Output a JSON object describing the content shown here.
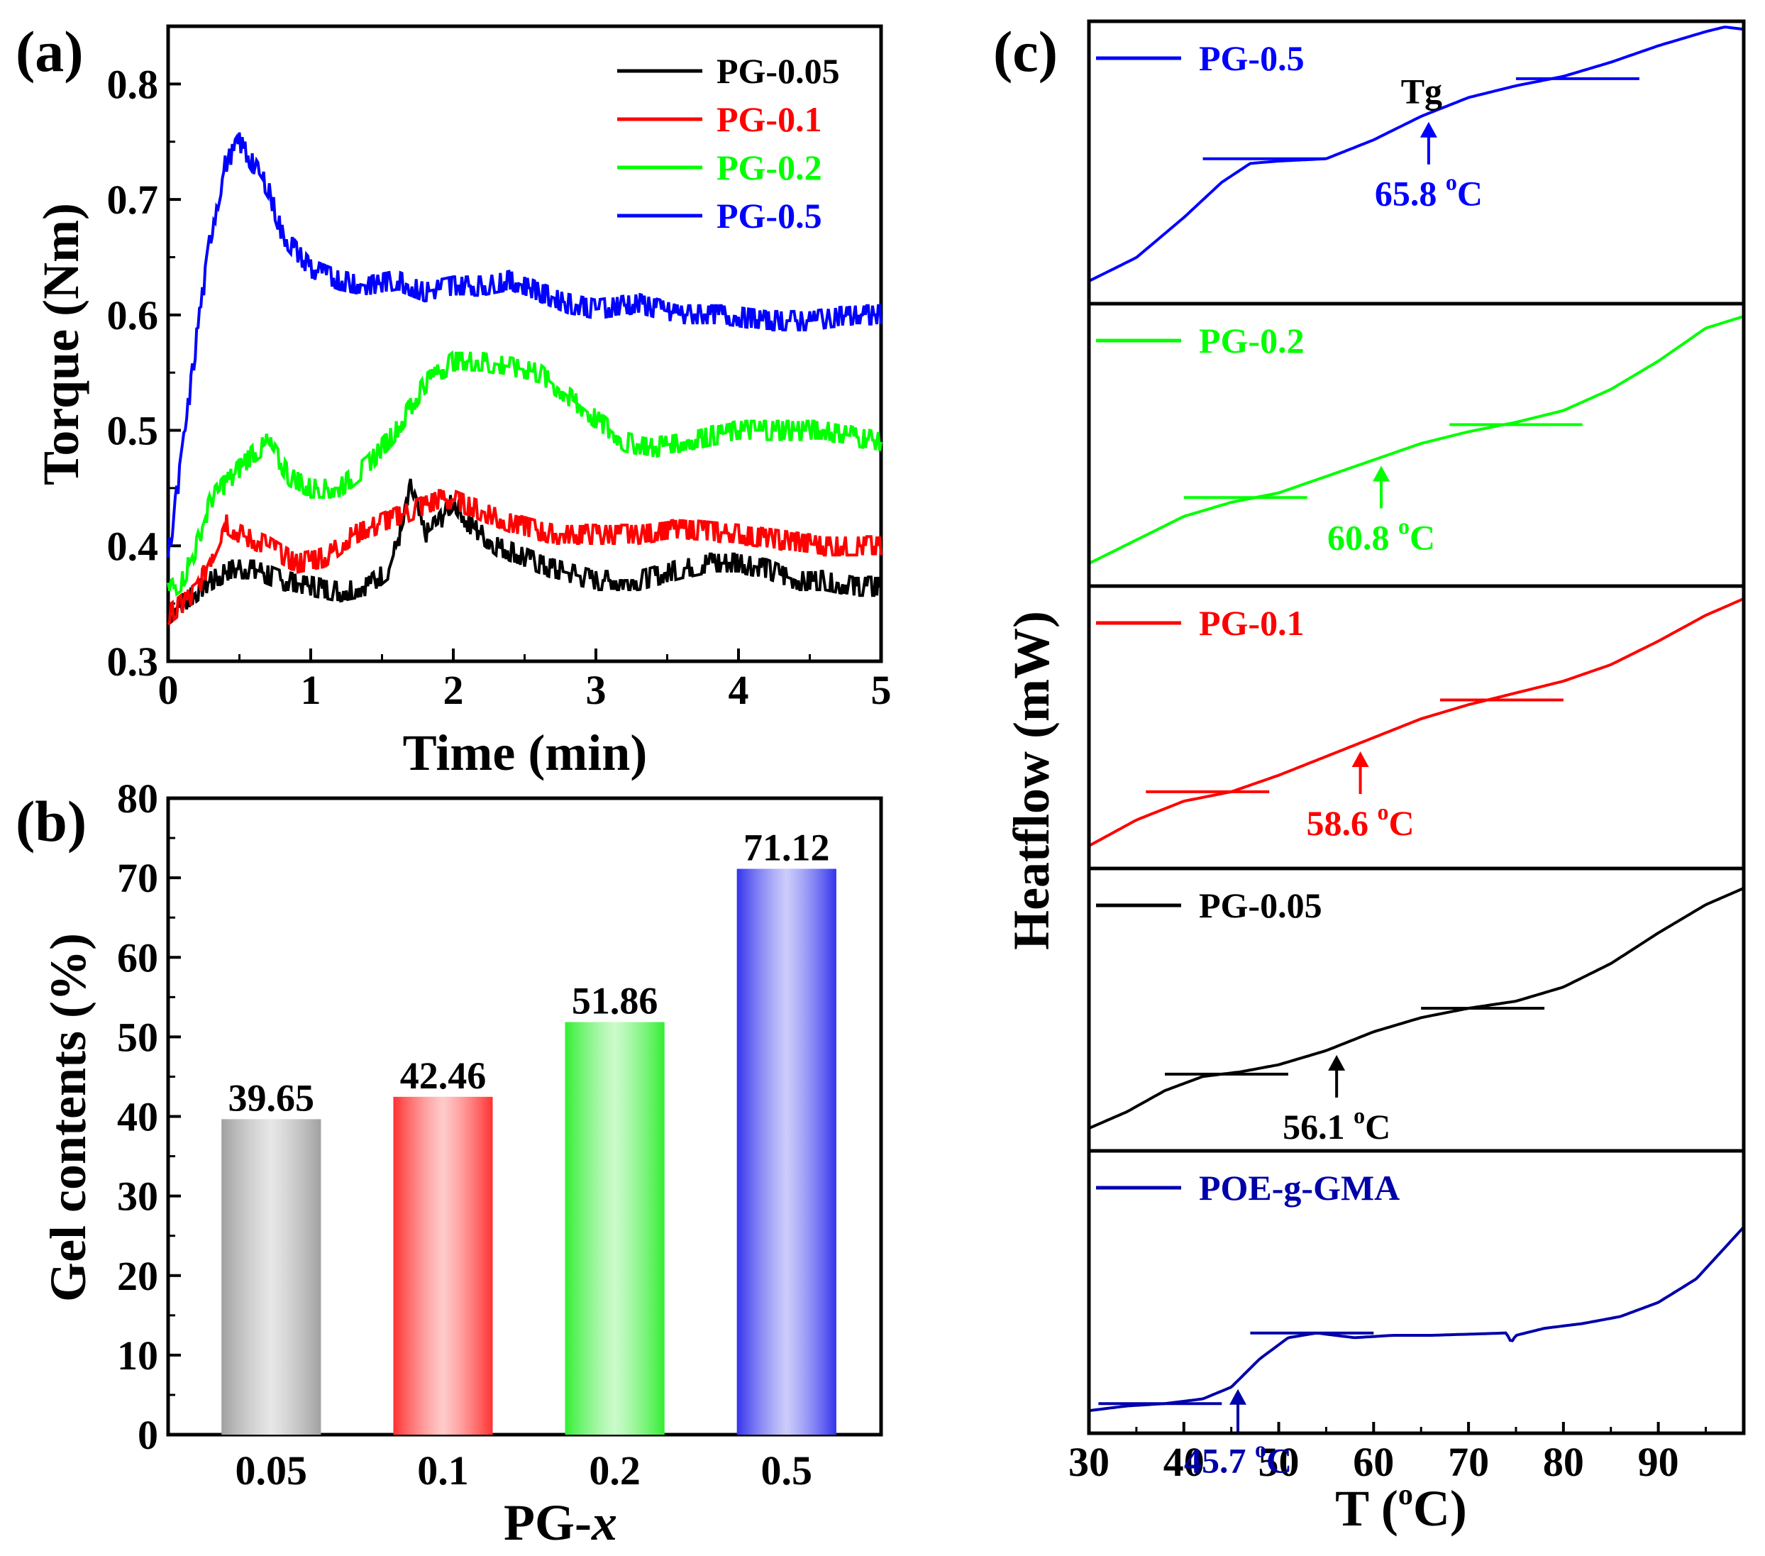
{
  "chart_data": [
    {
      "panel": "(a)",
      "type": "line",
      "xlabel": "Time (min)",
      "ylabel": "Torque (Nm)",
      "xlim": [
        0,
        5
      ],
      "ylim": [
        0.3,
        0.85
      ],
      "xticks": [
        "0",
        "1",
        "2",
        "3",
        "4",
        "5"
      ],
      "yticks": [
        "0.3",
        "0.4",
        "0.5",
        "0.6",
        "0.7",
        "0.8"
      ],
      "legend_position": "top-right",
      "series": [
        {
          "name": "PG-0.05",
          "color": "#000000",
          "x": [
            0,
            0.1,
            0.2,
            0.3,
            0.45,
            0.6,
            0.8,
            1.0,
            1.2,
            1.4,
            1.55,
            1.65,
            1.7,
            1.8,
            1.9,
            2.0,
            2.1,
            2.3,
            2.5,
            2.7,
            3.0,
            3.3,
            3.6,
            3.8,
            4.0,
            4.2,
            4.4,
            4.6,
            4.8,
            5.0
          ],
          "y": [
            0.34,
            0.35,
            0.36,
            0.37,
            0.38,
            0.38,
            0.37,
            0.365,
            0.36,
            0.365,
            0.38,
            0.42,
            0.45,
            0.41,
            0.42,
            0.44,
            0.42,
            0.4,
            0.39,
            0.38,
            0.37,
            0.37,
            0.38,
            0.385,
            0.385,
            0.38,
            0.37,
            0.37,
            0.365,
            0.365
          ]
        },
        {
          "name": "PG-0.1",
          "color": "#ff0000",
          "x": [
            0,
            0.1,
            0.2,
            0.3,
            0.4,
            0.5,
            0.7,
            0.9,
            1.1,
            1.3,
            1.5,
            1.7,
            1.9,
            2.0,
            2.2,
            2.4,
            2.7,
            3.0,
            3.3,
            3.6,
            4.0,
            4.3,
            4.6,
            5.0
          ],
          "y": [
            0.34,
            0.35,
            0.36,
            0.39,
            0.42,
            0.41,
            0.4,
            0.385,
            0.39,
            0.41,
            0.42,
            0.43,
            0.44,
            0.44,
            0.43,
            0.42,
            0.41,
            0.41,
            0.41,
            0.415,
            0.41,
            0.405,
            0.4,
            0.4
          ]
        },
        {
          "name": "PG-0.2",
          "color": "#00ff00",
          "x": [
            0,
            0.1,
            0.2,
            0.3,
            0.45,
            0.6,
            0.7,
            0.85,
            1.0,
            1.2,
            1.4,
            1.6,
            1.8,
            2.0,
            2.2,
            2.4,
            2.6,
            2.8,
            3.0,
            3.2,
            3.4,
            3.6,
            3.8,
            4.0,
            4.3,
            4.6,
            5.0
          ],
          "y": [
            0.36,
            0.37,
            0.4,
            0.44,
            0.46,
            0.48,
            0.49,
            0.46,
            0.45,
            0.45,
            0.47,
            0.5,
            0.54,
            0.56,
            0.56,
            0.555,
            0.55,
            0.53,
            0.51,
            0.49,
            0.485,
            0.49,
            0.495,
            0.5,
            0.5,
            0.5,
            0.49
          ]
        },
        {
          "name": "PG-0.5",
          "color": "#0000ff",
          "x": [
            0,
            0.1,
            0.2,
            0.3,
            0.4,
            0.5,
            0.6,
            0.7,
            0.8,
            0.9,
            1.0,
            1.2,
            1.4,
            1.6,
            1.8,
            2.0,
            2.2,
            2.4,
            2.6,
            2.8,
            3.0,
            3.3,
            3.6,
            3.9,
            4.2,
            4.5,
            4.8,
            5.0
          ],
          "y": [
            0.39,
            0.48,
            0.58,
            0.67,
            0.73,
            0.75,
            0.73,
            0.71,
            0.67,
            0.655,
            0.64,
            0.63,
            0.625,
            0.63,
            0.62,
            0.625,
            0.625,
            0.63,
            0.62,
            0.61,
            0.605,
            0.61,
            0.6,
            0.6,
            0.595,
            0.595,
            0.6,
            0.6
          ]
        }
      ]
    },
    {
      "panel": "(b)",
      "type": "bar",
      "xlabel": "PG-",
      "xlabel_italic": "x",
      "ylabel": "Gel contents (%)",
      "ylim": [
        0,
        80
      ],
      "yticks": [
        "0",
        "10",
        "20",
        "30",
        "40",
        "50",
        "60",
        "70",
        "80"
      ],
      "categories": [
        "0.05",
        "0.1",
        "0.2",
        "0.5"
      ],
      "values": [
        39.65,
        42.46,
        51.86,
        71.12
      ],
      "value_labels": [
        "39.65",
        "42.46",
        "51.86",
        "71.12"
      ],
      "colors": [
        "#a0a0a0",
        "#ff3030",
        "#33ee33",
        "#3333ee"
      ]
    },
    {
      "panel": "(c)",
      "type": "line",
      "xlabel_prefix": "T (",
      "xlabel_sup": "o",
      "xlabel_suffix": "C)",
      "ylabel": "Heatflow (mW)",
      "xlim": [
        30,
        99
      ],
      "xticks": [
        "30",
        "40",
        "50",
        "60",
        "70",
        "80",
        "90"
      ],
      "series": [
        {
          "name": "PG-0.5",
          "color": "#0000ff",
          "tg_value": "65.8",
          "tg_x": 65.8,
          "note": "Tg",
          "x": [
            30,
            35,
            40,
            44,
            47,
            50,
            55,
            60,
            65,
            70,
            75,
            80,
            85,
            90,
            95,
            97,
            99
          ],
          "y": [
            0.0,
            0.1,
            0.27,
            0.42,
            0.5,
            0.51,
            0.52,
            0.6,
            0.7,
            0.78,
            0.83,
            0.87,
            0.93,
            1.0,
            1.06,
            1.08,
            1.07
          ],
          "tangents": [
            [
              42,
              55,
              0.52
            ],
            [
              75,
              88,
              0.86
            ]
          ]
        },
        {
          "name": "PG-0.2",
          "color": "#00ff00",
          "tg_value": "60.8",
          "tg_x": 60.8,
          "x": [
            30,
            35,
            40,
            45,
            50,
            55,
            60,
            65,
            70,
            75,
            80,
            85,
            90,
            95,
            99
          ],
          "y": [
            0.0,
            0.1,
            0.2,
            0.26,
            0.3,
            0.37,
            0.44,
            0.51,
            0.56,
            0.6,
            0.65,
            0.74,
            0.86,
            1.0,
            1.05
          ],
          "tangents": [
            [
              40,
              53,
              0.28
            ],
            [
              68,
              82,
              0.59
            ]
          ]
        },
        {
          "name": "PG-0.1",
          "color": "#ff0000",
          "tg_value": "58.6",
          "tg_x": 58.6,
          "x": [
            30,
            35,
            40,
            45,
            50,
            55,
            60,
            65,
            70,
            75,
            80,
            85,
            90,
            95,
            99
          ],
          "y": [
            0.0,
            0.11,
            0.19,
            0.23,
            0.3,
            0.38,
            0.46,
            0.54,
            0.6,
            0.65,
            0.7,
            0.77,
            0.87,
            0.98,
            1.05
          ],
          "tangents": [
            [
              36,
              49,
              0.23
            ],
            [
              67,
              80,
              0.62
            ]
          ]
        },
        {
          "name": "PG-0.05",
          "color": "#000000",
          "tg_value": "56.1",
          "tg_x": 56.1,
          "x": [
            30,
            34,
            38,
            42,
            46,
            50,
            55,
            60,
            65,
            70,
            75,
            80,
            85,
            90,
            95,
            99
          ],
          "y": [
            0.0,
            0.07,
            0.16,
            0.22,
            0.24,
            0.27,
            0.33,
            0.41,
            0.47,
            0.51,
            0.54,
            0.6,
            0.7,
            0.83,
            0.95,
            1.02
          ],
          "tangents": [
            [
              38,
              51,
              0.23
            ],
            [
              65,
              78,
              0.51
            ]
          ]
        },
        {
          "name": "POE-g-GMA",
          "color": "#0000aa",
          "tg_value": "45.7",
          "tg_x": 45.7,
          "x": [
            30,
            34,
            38,
            42,
            45,
            48,
            51,
            54,
            58,
            62,
            66,
            70,
            74,
            74.5,
            75,
            78,
            82,
            86,
            90,
            94,
            99
          ],
          "y": [
            0.0,
            0.02,
            0.03,
            0.05,
            0.1,
            0.22,
            0.31,
            0.33,
            0.31,
            0.32,
            0.32,
            0.325,
            0.33,
            0.29,
            0.32,
            0.35,
            0.37,
            0.4,
            0.46,
            0.56,
            0.78
          ],
          "tangents": [
            [
              31,
              44,
              0.03
            ],
            [
              47,
              60,
              0.33
            ]
          ]
        }
      ]
    }
  ]
}
